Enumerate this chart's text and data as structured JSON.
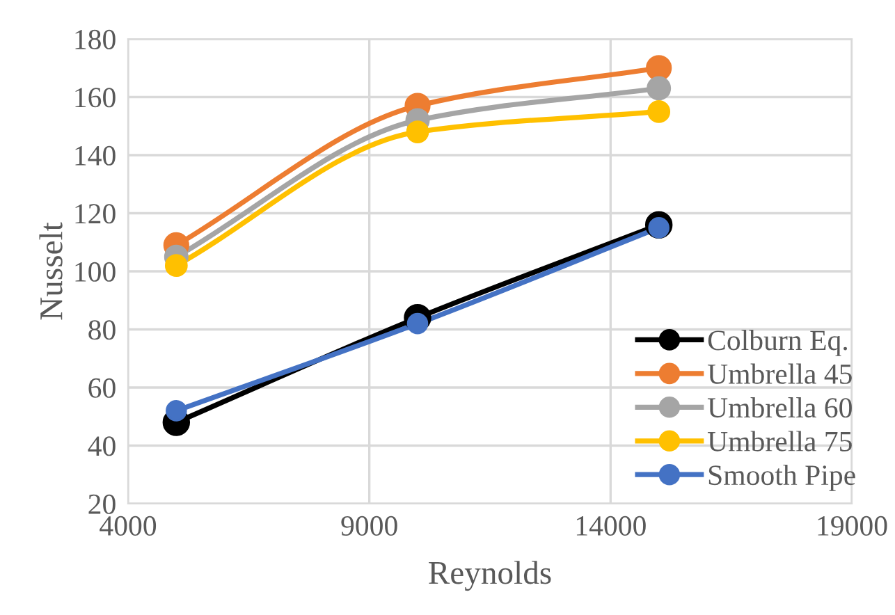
{
  "chart_data": {
    "type": "line",
    "xlabel": "Reynolds",
    "ylabel": "Nusselt",
    "x": [
      5000,
      10000,
      15000
    ],
    "series": [
      {
        "name": "Colburn Eq.",
        "color": "#000000",
        "values": [
          48,
          84,
          116
        ]
      },
      {
        "name": "Umbrella 45",
        "color": "#ed7d31",
        "values": [
          109,
          157,
          170
        ]
      },
      {
        "name": "Umbrella 60",
        "color": "#a5a5a5",
        "values": [
          105,
          152,
          163
        ]
      },
      {
        "name": "Umbrella 75",
        "color": "#ffc000",
        "values": [
          102,
          148,
          155
        ]
      },
      {
        "name": "Smooth Pipe",
        "color": "#4472c4",
        "values": [
          52,
          82,
          115
        ]
      }
    ],
    "xlim": [
      4000,
      19000
    ],
    "xticks": [
      4000,
      9000,
      14000,
      19000
    ],
    "ylim": [
      20,
      180
    ],
    "yticks": [
      20,
      40,
      60,
      80,
      100,
      120,
      140,
      160,
      180
    ],
    "grid": true,
    "legend": "bottom right",
    "marker": "circle",
    "line_style": "solid"
  }
}
